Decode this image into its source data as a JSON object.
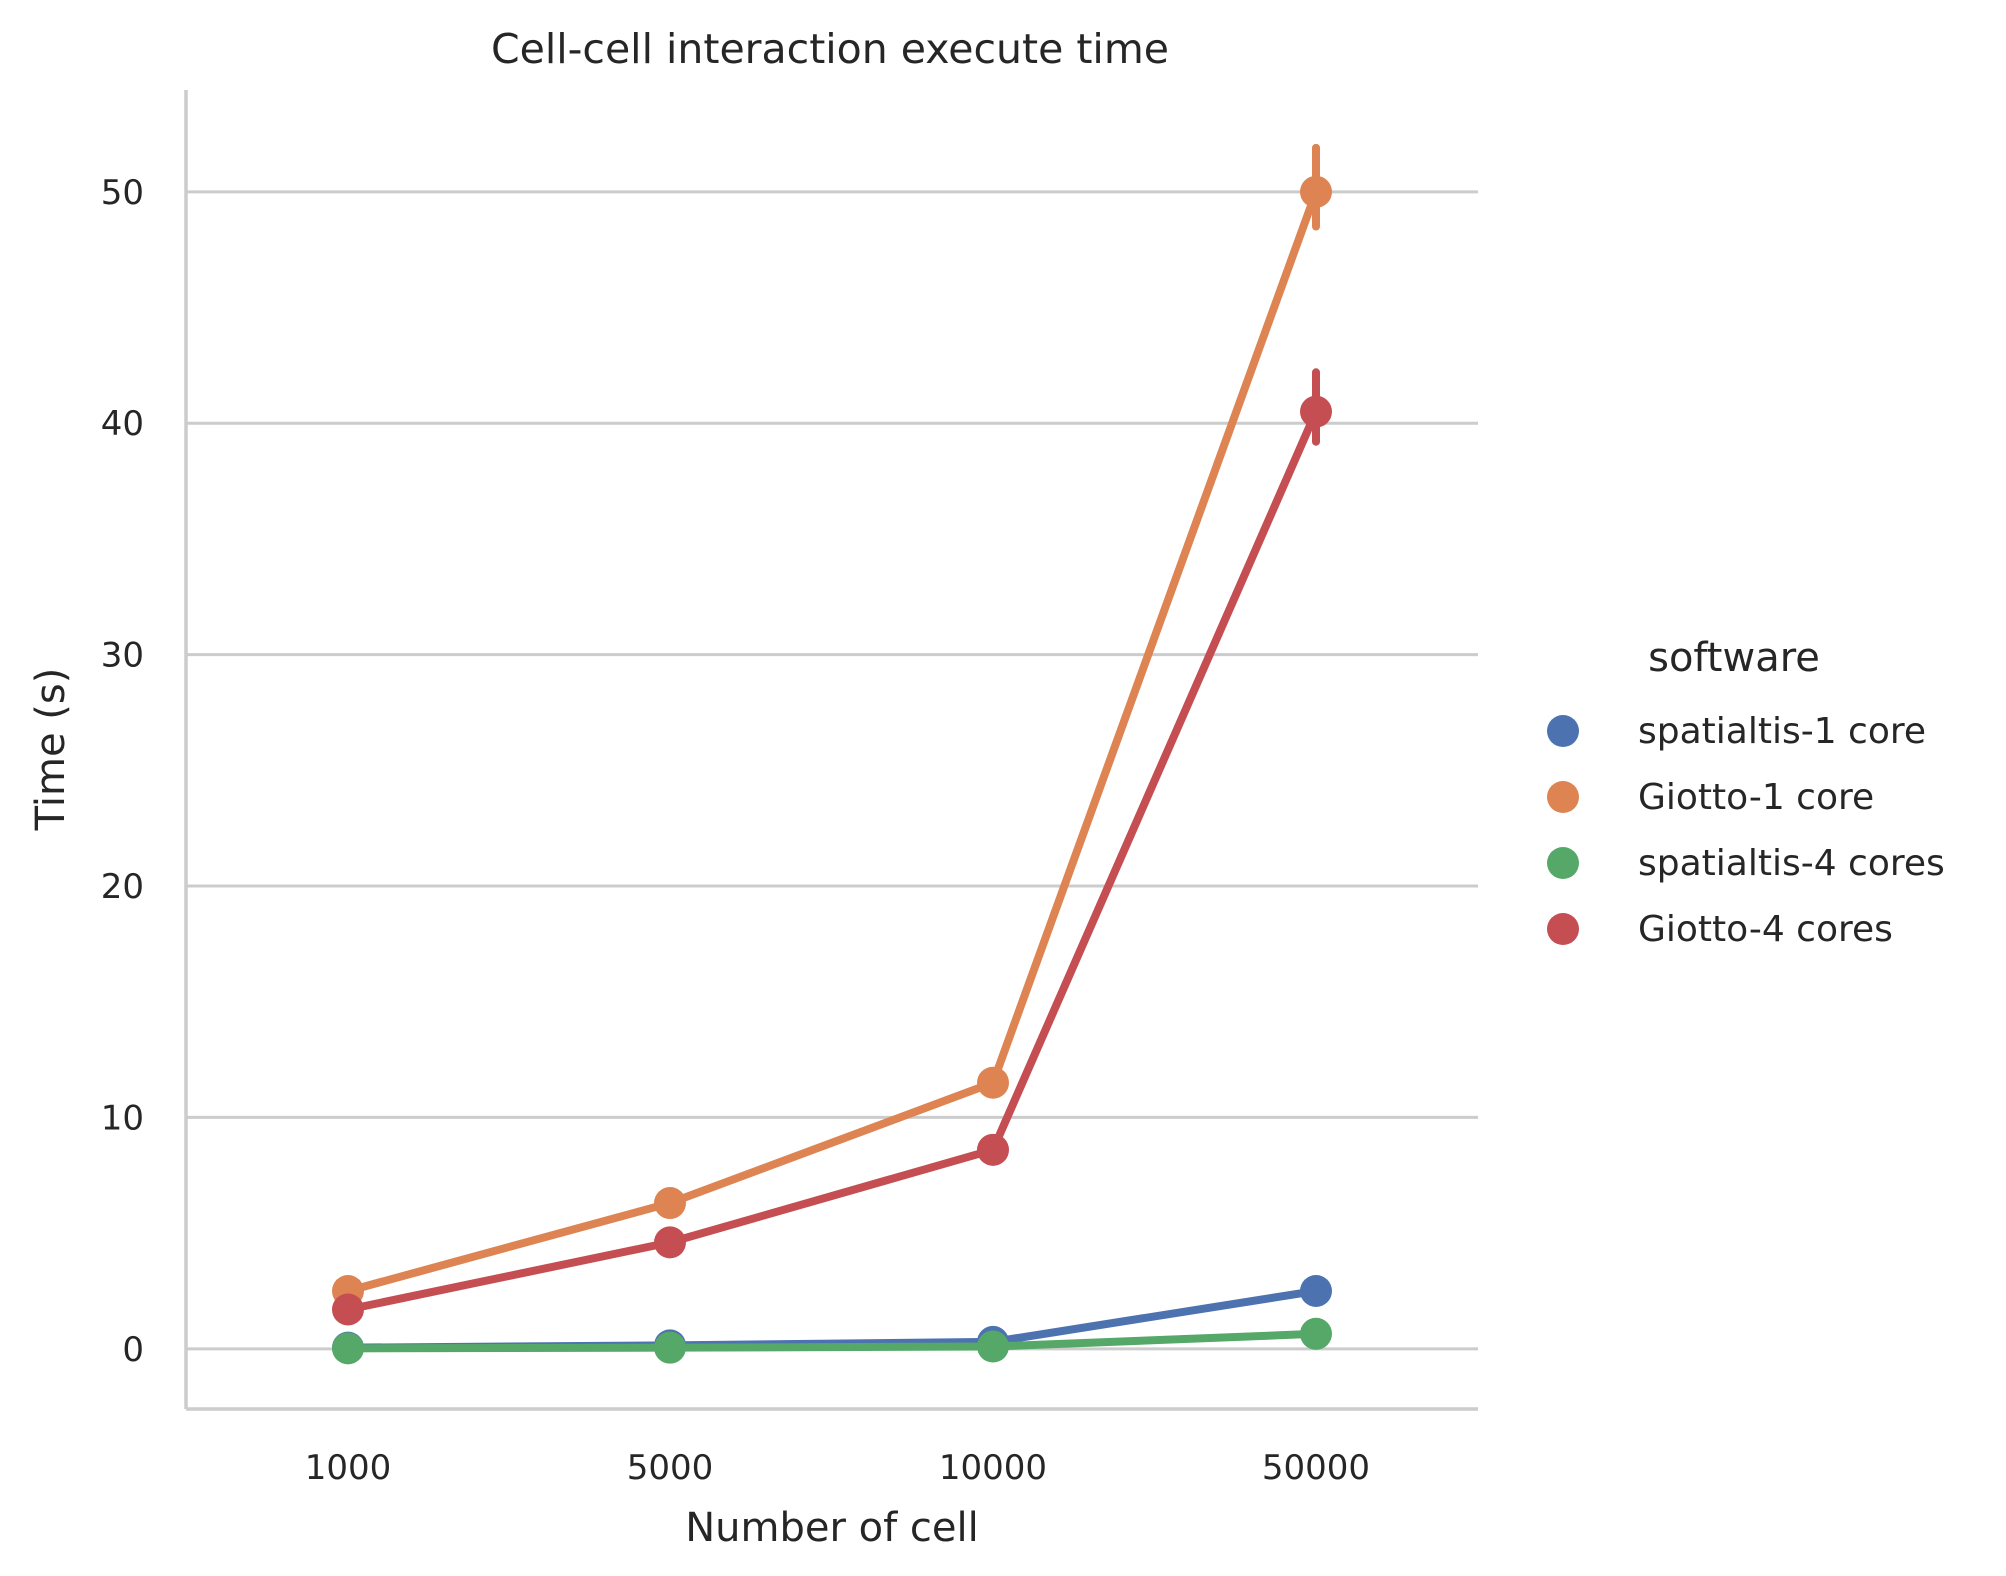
{
  "chart_data": {
    "type": "line",
    "title": "Cell-cell interaction execute time",
    "xlabel": "Number of cell",
    "ylabel": "Time (s)",
    "categories": [
      "1000",
      "5000",
      "10000",
      "50000"
    ],
    "ylim": [
      -2.6,
      54.4
    ],
    "yticks": [
      0,
      10,
      20,
      30,
      40,
      50
    ],
    "grid": "horizontal",
    "legend": {
      "title": "software",
      "position": "right"
    },
    "series": [
      {
        "name": "spatialtis-1 core",
        "color": "#4c72b0",
        "values": [
          0.05,
          0.15,
          0.3,
          2.5
        ],
        "error": [
          null,
          null,
          null,
          null
        ]
      },
      {
        "name": "Giotto-1 core",
        "color": "#dd8452",
        "values": [
          2.5,
          6.3,
          11.5,
          50.0
        ],
        "error": [
          null,
          null,
          null,
          [
            48.5,
            51.9
          ]
        ]
      },
      {
        "name": "spatialtis-4 cores",
        "color": "#55a868",
        "values": [
          0.02,
          0.05,
          0.1,
          0.65
        ],
        "error": [
          null,
          null,
          null,
          null
        ]
      },
      {
        "name": "Giotto-4 cores",
        "color": "#c44e52",
        "values": [
          1.7,
          4.6,
          8.6,
          40.5
        ],
        "error": [
          null,
          null,
          null,
          [
            39.2,
            42.2
          ]
        ]
      }
    ]
  }
}
